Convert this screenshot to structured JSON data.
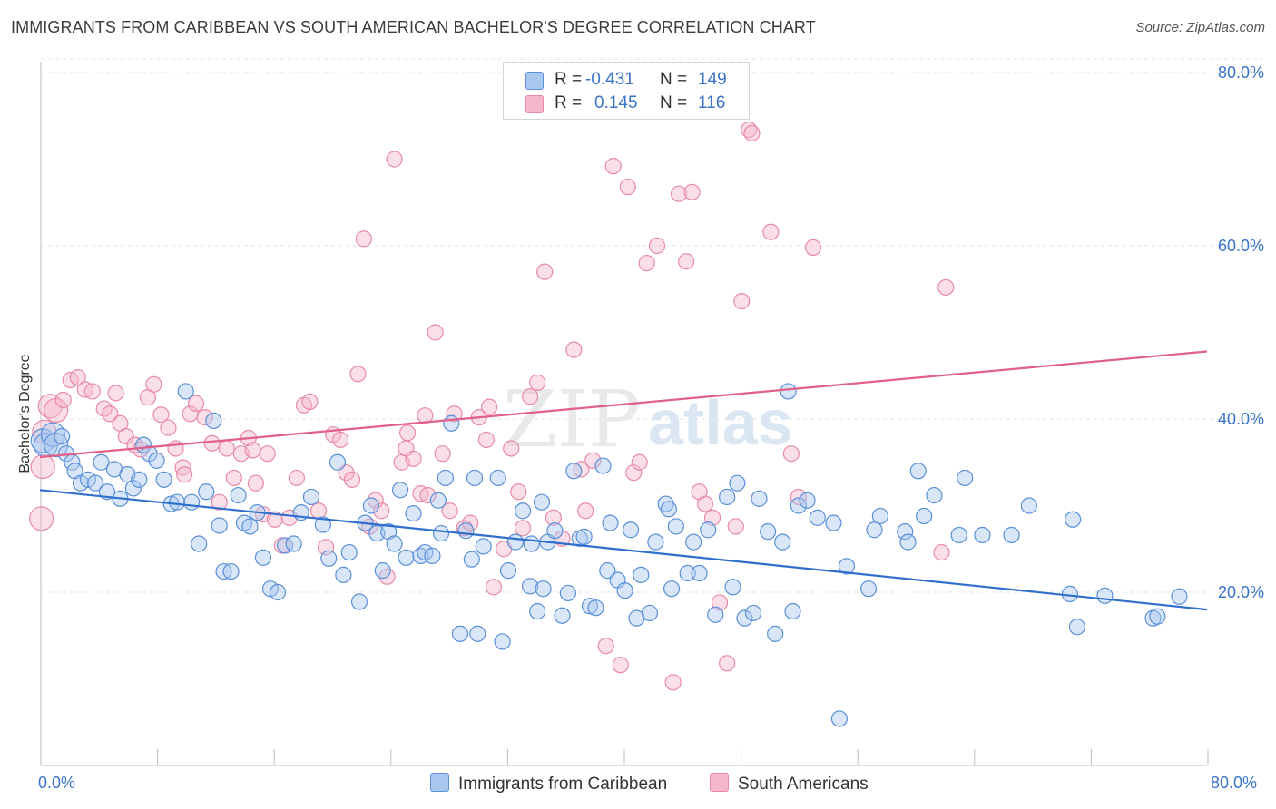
{
  "title": "IMMIGRANTS FROM CARIBBEAN VS SOUTH AMERICAN BACHELOR'S DEGREE CORRELATION CHART",
  "source": "Source: ZipAtlas.com",
  "watermark": {
    "zip": "ZIP",
    "atlas": "atlas"
  },
  "colors": {
    "blue_fill": "#a9c8f0",
    "blue_stroke": "#5b8fd8",
    "blue_line": "#2f6fcc",
    "pink_fill": "#f5b8cb",
    "pink_stroke": "#e88aa8",
    "pink_line": "#e0608a",
    "grid": "#e3e3e3",
    "tick_label": "#3a73c8"
  },
  "legend": {
    "rows": [
      {
        "r_label": "R =",
        "r_value": "-0.431",
        "n_label": "N =",
        "n_value": "149"
      },
      {
        "r_label": "R =",
        "r_value": "0.145",
        "n_label": "N =",
        "n_value": "116"
      }
    ]
  },
  "bottom_legend": [
    "Immigrants from Caribbean",
    "South Americans"
  ],
  "chart_data": {
    "type": "scatter",
    "xlabel": "",
    "ylabel": "Bachelor's Degree",
    "xlim": [
      0,
      80
    ],
    "ylim": [
      0,
      82
    ],
    "x_tick_labels": [
      "0.0%",
      "80.0%"
    ],
    "y_ticks": [
      20,
      40,
      60,
      80
    ],
    "y_tick_labels": [
      "20.0%",
      "40.0%",
      "60.0%",
      "80.0%"
    ],
    "grid": "horizontal dashed",
    "series": [
      {
        "name": "Immigrants from Caribbean",
        "trend": {
          "x": [
            0,
            80
          ],
          "y": [
            31.8,
            18.0
          ]
        },
        "points": [
          [
            0.2,
            37.5
          ],
          [
            0.4,
            37
          ],
          [
            0.9,
            38.2
          ],
          [
            1.1,
            37
          ],
          [
            1.5,
            38
          ],
          [
            1.8,
            36
          ],
          [
            2.2,
            35
          ],
          [
            2.4,
            34
          ],
          [
            2.8,
            32.6
          ],
          [
            3.3,
            33
          ],
          [
            3.8,
            32.6
          ],
          [
            4.2,
            35
          ],
          [
            4.6,
            31.6
          ],
          [
            5.1,
            34.2
          ],
          [
            5.5,
            30.8
          ],
          [
            6,
            33.6
          ],
          [
            6.4,
            32
          ],
          [
            6.8,
            33
          ],
          [
            7.1,
            37
          ],
          [
            7.5,
            36
          ],
          [
            8.0,
            35.2
          ],
          [
            8.5,
            33
          ],
          [
            9.0,
            30.2
          ],
          [
            9.4,
            30.4
          ],
          [
            10,
            43.2
          ],
          [
            10.4,
            30.4
          ],
          [
            10.9,
            25.6
          ],
          [
            11.4,
            31.6
          ],
          [
            11.9,
            39.8
          ],
          [
            12.3,
            27.7
          ],
          [
            12.6,
            22.4
          ],
          [
            13.1,
            22.4
          ],
          [
            13.6,
            31.2
          ],
          [
            14,
            28
          ],
          [
            14.4,
            27.6
          ],
          [
            14.9,
            29.2
          ],
          [
            15.3,
            24
          ],
          [
            15.8,
            20.4
          ],
          [
            16.3,
            20
          ],
          [
            16.8,
            25.4
          ],
          [
            17.4,
            25.6
          ],
          [
            17.9,
            29.2
          ],
          [
            18.6,
            31
          ],
          [
            19.4,
            27.8
          ],
          [
            19.8,
            23.9
          ],
          [
            20.4,
            35
          ],
          [
            20.8,
            22
          ],
          [
            21.2,
            24.6
          ],
          [
            21.9,
            18.9
          ],
          [
            22.3,
            28
          ],
          [
            22.7,
            30
          ],
          [
            23.1,
            26.8
          ],
          [
            23.5,
            22.5
          ],
          [
            23.9,
            27
          ],
          [
            24.3,
            25.6
          ],
          [
            24.7,
            31.8
          ],
          [
            25.1,
            24
          ],
          [
            25.6,
            29.1
          ],
          [
            26.1,
            24.2
          ],
          [
            26.4,
            24.6
          ],
          [
            26.9,
            24.2
          ],
          [
            27.3,
            30.6
          ],
          [
            27.8,
            33.2
          ],
          [
            28.2,
            39.5
          ],
          [
            28.8,
            15.2
          ],
          [
            29.2,
            27.1
          ],
          [
            29.6,
            23.8
          ],
          [
            30,
            15.2
          ],
          [
            30.4,
            25.3
          ],
          [
            31.4,
            33.2
          ],
          [
            31.7,
            14.3
          ],
          [
            32.1,
            22.5
          ],
          [
            32.6,
            25.8
          ],
          [
            33.1,
            29.4
          ],
          [
            33.6,
            20.7
          ],
          [
            34.1,
            17.8
          ],
          [
            34.5,
            20.4
          ],
          [
            34.8,
            25.8
          ],
          [
            35.3,
            27.1
          ],
          [
            35.8,
            17.3
          ],
          [
            36.2,
            19.9
          ],
          [
            36.6,
            34
          ],
          [
            37,
            26.2
          ],
          [
            37.3,
            26.4
          ],
          [
            37.7,
            18.4
          ],
          [
            38.1,
            18.2
          ],
          [
            38.6,
            34.6
          ],
          [
            39.1,
            28
          ],
          [
            39.6,
            21.4
          ],
          [
            40.1,
            20.2
          ],
          [
            40.5,
            27.2
          ],
          [
            40.9,
            17
          ],
          [
            41.2,
            22
          ],
          [
            41.8,
            17.6
          ],
          [
            42.2,
            25.8
          ],
          [
            42.9,
            30.2
          ],
          [
            43.3,
            20.4
          ],
          [
            43.6,
            27.6
          ],
          [
            44.4,
            22.2
          ],
          [
            44.8,
            25.8
          ],
          [
            45.2,
            22.2
          ],
          [
            45.8,
            27.2
          ],
          [
            46.3,
            17.4
          ],
          [
            47.1,
            31
          ],
          [
            47.5,
            20.6
          ],
          [
            47.8,
            32.6
          ],
          [
            48.3,
            17
          ],
          [
            48.9,
            17.6
          ],
          [
            49.3,
            30.8
          ],
          [
            49.9,
            27
          ],
          [
            50.4,
            15.2
          ],
          [
            50.9,
            25.8
          ],
          [
            51.3,
            43.2
          ],
          [
            51.6,
            17.8
          ],
          [
            52,
            30
          ],
          [
            52.6,
            30.6
          ],
          [
            53.3,
            28.6
          ],
          [
            54.4,
            28
          ],
          [
            55.3,
            23
          ],
          [
            56.8,
            20.4
          ],
          [
            57.2,
            27.2
          ],
          [
            57.6,
            28.8
          ],
          [
            59.3,
            27
          ],
          [
            59.5,
            25.8
          ],
          [
            60.2,
            34
          ],
          [
            60.6,
            28.8
          ],
          [
            61.3,
            31.2
          ],
          [
            63,
            26.6
          ],
          [
            63.4,
            33.2
          ],
          [
            64.6,
            26.6
          ],
          [
            66.6,
            26.6
          ],
          [
            67.8,
            30
          ],
          [
            70.8,
            28.4
          ],
          [
            71.1,
            16
          ],
          [
            70.6,
            19.8
          ],
          [
            73,
            19.6
          ],
          [
            76.3,
            17
          ],
          [
            76.6,
            17.2
          ],
          [
            78.1,
            19.5
          ],
          [
            54.8,
            5.4
          ],
          [
            43.1,
            29.6
          ],
          [
            38.9,
            22.5
          ],
          [
            27.5,
            26.8
          ],
          [
            33.7,
            25.6
          ],
          [
            29.8,
            33.2
          ],
          [
            34.4,
            30.4
          ]
        ]
      },
      {
        "name": "South Americans",
        "trend": {
          "x": [
            0,
            80
          ],
          "y": [
            35.6,
            47.8
          ]
        },
        "points": [
          [
            0.1,
            28.5
          ],
          [
            0.2,
            34.5
          ],
          [
            0.3,
            38.5
          ],
          [
            0.7,
            41.5
          ],
          [
            1.1,
            41
          ],
          [
            1.6,
            42.2
          ],
          [
            2.1,
            44.5
          ],
          [
            2.6,
            44.8
          ],
          [
            3.1,
            43.4
          ],
          [
            3.6,
            43.2
          ],
          [
            4.4,
            41.2
          ],
          [
            4.8,
            40.6
          ],
          [
            5.5,
            39.5
          ],
          [
            5.9,
            38
          ],
          [
            6.5,
            37
          ],
          [
            6.9,
            36.5
          ],
          [
            7.4,
            42.5
          ],
          [
            7.8,
            44
          ],
          [
            8.3,
            40.5
          ],
          [
            8.8,
            39
          ],
          [
            9.3,
            36.6
          ],
          [
            9.8,
            34.4
          ],
          [
            10.3,
            40.6
          ],
          [
            10.7,
            41.8
          ],
          [
            11.3,
            40.2
          ],
          [
            11.8,
            37.2
          ],
          [
            12.3,
            30.4
          ],
          [
            12.8,
            36.6
          ],
          [
            13.3,
            33.2
          ],
          [
            13.8,
            36
          ],
          [
            14.3,
            37.8
          ],
          [
            14.8,
            32.6
          ],
          [
            15.3,
            29
          ],
          [
            15.6,
            36
          ],
          [
            16.1,
            28.4
          ],
          [
            16.6,
            25.4
          ],
          [
            17.1,
            28.6
          ],
          [
            17.6,
            33.2
          ],
          [
            18.1,
            41.6
          ],
          [
            18.5,
            42
          ],
          [
            19.1,
            29.4
          ],
          [
            19.6,
            25.2
          ],
          [
            20.1,
            38.2
          ],
          [
            20.6,
            37.6
          ],
          [
            21,
            33.8
          ],
          [
            21.4,
            33
          ],
          [
            21.8,
            45.2
          ],
          [
            22.2,
            60.8
          ],
          [
            22.6,
            27.6
          ],
          [
            23,
            30.6
          ],
          [
            23.4,
            29.4
          ],
          [
            23.8,
            21.8
          ],
          [
            24.3,
            70
          ],
          [
            24.8,
            35
          ],
          [
            25.1,
            36.6
          ],
          [
            25.6,
            35.4
          ],
          [
            26.1,
            31.4
          ],
          [
            26.6,
            31.2
          ],
          [
            27.1,
            50
          ],
          [
            27.6,
            36
          ],
          [
            28.1,
            29.4
          ],
          [
            28.4,
            40.6
          ],
          [
            29.1,
            27.4
          ],
          [
            29.5,
            28
          ],
          [
            30.1,
            40.2
          ],
          [
            30.6,
            37.6
          ],
          [
            31.1,
            20.6
          ],
          [
            31.8,
            25
          ],
          [
            32.3,
            36.6
          ],
          [
            32.8,
            31.6
          ],
          [
            33.1,
            27.4
          ],
          [
            33.6,
            42.6
          ],
          [
            34.1,
            44.2
          ],
          [
            34.6,
            57
          ],
          [
            35.2,
            28.6
          ],
          [
            35.8,
            26.2
          ],
          [
            36.6,
            48
          ],
          [
            37.1,
            34.2
          ],
          [
            37.4,
            29.4
          ],
          [
            37.9,
            35.2
          ],
          [
            38.4,
            78
          ],
          [
            38.8,
            13.8
          ],
          [
            39.3,
            69.2
          ],
          [
            39.8,
            11.6
          ],
          [
            40.3,
            66.8
          ],
          [
            40.7,
            33.8
          ],
          [
            41.1,
            35
          ],
          [
            41.6,
            58
          ],
          [
            42.3,
            60
          ],
          [
            43.4,
            9.6
          ],
          [
            43.8,
            66
          ],
          [
            44.3,
            58.2
          ],
          [
            44.7,
            66.2
          ],
          [
            45.2,
            31.6
          ],
          [
            45.6,
            30.2
          ],
          [
            46.1,
            28.6
          ],
          [
            46.6,
            18.8
          ],
          [
            47.1,
            11.8
          ],
          [
            47.7,
            27.6
          ],
          [
            48.1,
            53.6
          ],
          [
            48.6,
            73.4
          ],
          [
            48.8,
            73
          ],
          [
            50.1,
            61.6
          ],
          [
            51.5,
            36
          ],
          [
            52,
            31
          ],
          [
            53,
            59.8
          ],
          [
            62.1,
            55.2
          ],
          [
            61.8,
            24.6
          ],
          [
            30.8,
            41.4
          ],
          [
            26.4,
            40.4
          ],
          [
            25.2,
            38.4
          ],
          [
            14.6,
            36.4
          ],
          [
            9.9,
            33.6
          ],
          [
            5.2,
            43
          ]
        ]
      }
    ]
  }
}
